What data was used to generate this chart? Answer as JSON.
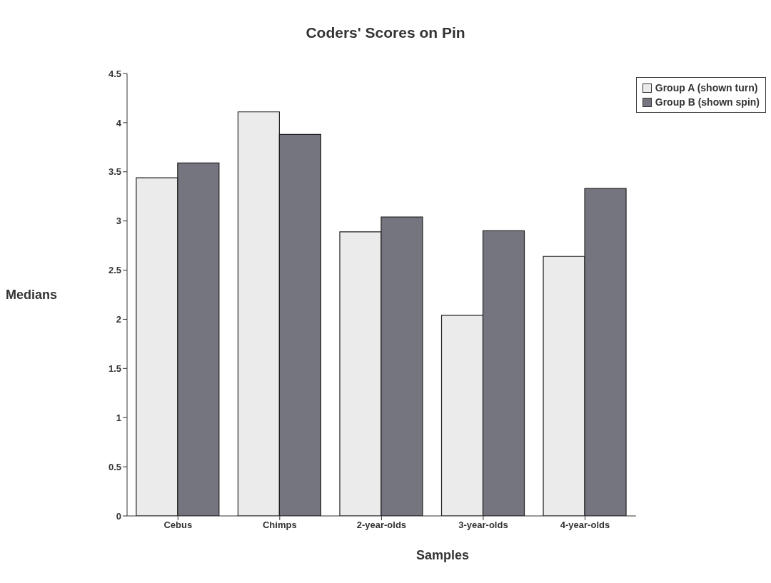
{
  "chart_data": {
    "type": "bar",
    "title": "Coders' Scores on Pin",
    "xlabel": "Samples",
    "ylabel": "Medians",
    "categories": [
      "Cebus",
      "Chimps",
      "2-year-olds",
      "3-year-olds",
      "4-year-olds"
    ],
    "series": [
      {
        "name": "Group A (shown turn)",
        "color": "#ebebeb",
        "values": [
          3.44,
          4.11,
          2.89,
          2.04,
          2.64
        ]
      },
      {
        "name": "Group B (shown spin)",
        "color": "#75757f",
        "values": [
          3.59,
          3.88,
          3.04,
          2.9,
          3.33
        ]
      }
    ],
    "ylim": [
      0,
      4.5
    ],
    "yticks": [
      0,
      0.5,
      1,
      1.5,
      2,
      2.5,
      3,
      3.5,
      4,
      4.5
    ],
    "grid": false,
    "legend": "top right"
  }
}
